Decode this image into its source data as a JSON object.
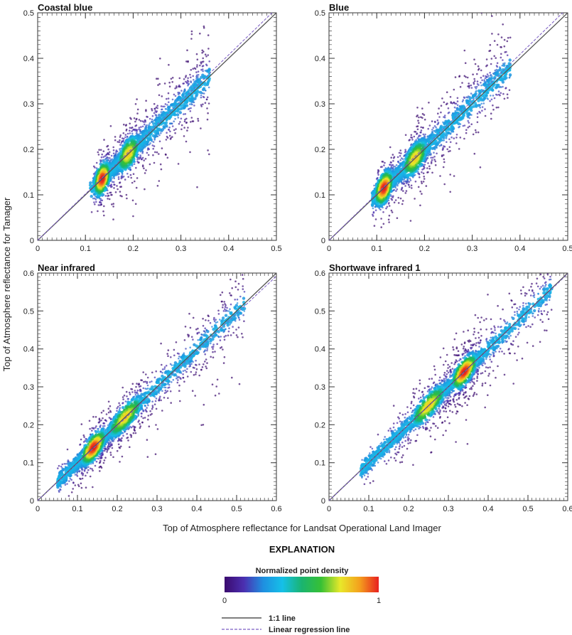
{
  "chart_data": [
    {
      "type": "scatter",
      "title": "Coastal blue",
      "xlim": [
        0,
        0.5
      ],
      "ylim": [
        0,
        0.5
      ],
      "xticks": [
        "0",
        "0.1",
        "0.2",
        "0.3",
        "0.4",
        "0.5"
      ],
      "yticks": [
        "0",
        "0.1",
        "0.2",
        "0.3",
        "0.4",
        "0.5"
      ],
      "x_range": [
        0.12,
        0.36
      ],
      "density_peak": [
        0.135,
        0.145
      ],
      "secondary_peak": [
        0.19,
        0.2
      ],
      "regression": {
        "slope": 1.025,
        "intercept": -0.003
      }
    },
    {
      "type": "scatter",
      "title": "Blue",
      "xlim": [
        0,
        0.5
      ],
      "ylim": [
        0,
        0.5
      ],
      "xticks": [
        "0",
        "0.1",
        "0.2",
        "0.3",
        "0.4",
        "0.5"
      ],
      "yticks": [
        "0",
        "0.1",
        "0.2",
        "0.3",
        "0.4",
        "0.5"
      ],
      "x_range": [
        0.1,
        0.38
      ],
      "density_peak": [
        0.115,
        0.125
      ],
      "secondary_peak": [
        0.18,
        0.19
      ],
      "regression": {
        "slope": 1.03,
        "intercept": -0.004
      }
    },
    {
      "type": "scatter",
      "title": "Near infrared",
      "xlim": [
        0,
        0.6
      ],
      "ylim": [
        0,
        0.6
      ],
      "xticks": [
        "0",
        "0.1",
        "0.2",
        "0.3",
        "0.4",
        "0.5",
        "0.6"
      ],
      "yticks": [
        "0",
        "0.1",
        "0.2",
        "0.3",
        "0.4",
        "0.5",
        "0.6"
      ],
      "x_range": [
        0.05,
        0.52
      ],
      "density_peak": [
        0.14,
        0.13
      ],
      "secondary_peak": [
        0.22,
        0.21
      ],
      "regression": {
        "slope": 0.99,
        "intercept": -0.002
      }
    },
    {
      "type": "scatter",
      "title": "Shortwave infrared 1",
      "xlim": [
        0,
        0.6
      ],
      "ylim": [
        0,
        0.6
      ],
      "xticks": [
        "0",
        "0.1",
        "0.2",
        "0.3",
        "0.4",
        "0.5",
        "0.6"
      ],
      "yticks": [
        "0",
        "0.1",
        "0.2",
        "0.3",
        "0.4",
        "0.5",
        "0.6"
      ],
      "x_range": [
        0.08,
        0.56
      ],
      "density_peak": [
        0.34,
        0.34
      ],
      "secondary_peak": [
        0.25,
        0.25
      ],
      "regression": {
        "slope": 1.0,
        "intercept": -0.002
      }
    }
  ],
  "axes": {
    "xlabel": "Top of Atmosphere reflectance for Landsat Operational Land Imager",
    "ylabel": "Top of Atmosphere reflectance for Tanager"
  },
  "explanation": {
    "title": "EXPLANATION",
    "colorbar_title": "Normalized point density",
    "colorbar_min": "0",
    "colorbar_max": "1",
    "colormap": [
      "#3b0a6e",
      "#4b2fb0",
      "#1f8fe0",
      "#15c0e8",
      "#1ab470",
      "#37c035",
      "#e8e82a",
      "#f4a11d",
      "#e82020"
    ],
    "one_to_one_label": "1:1 line",
    "regression_label": "Linear regression line",
    "one_to_one_color": "#555555",
    "regression_color": "#7b5cc4"
  }
}
